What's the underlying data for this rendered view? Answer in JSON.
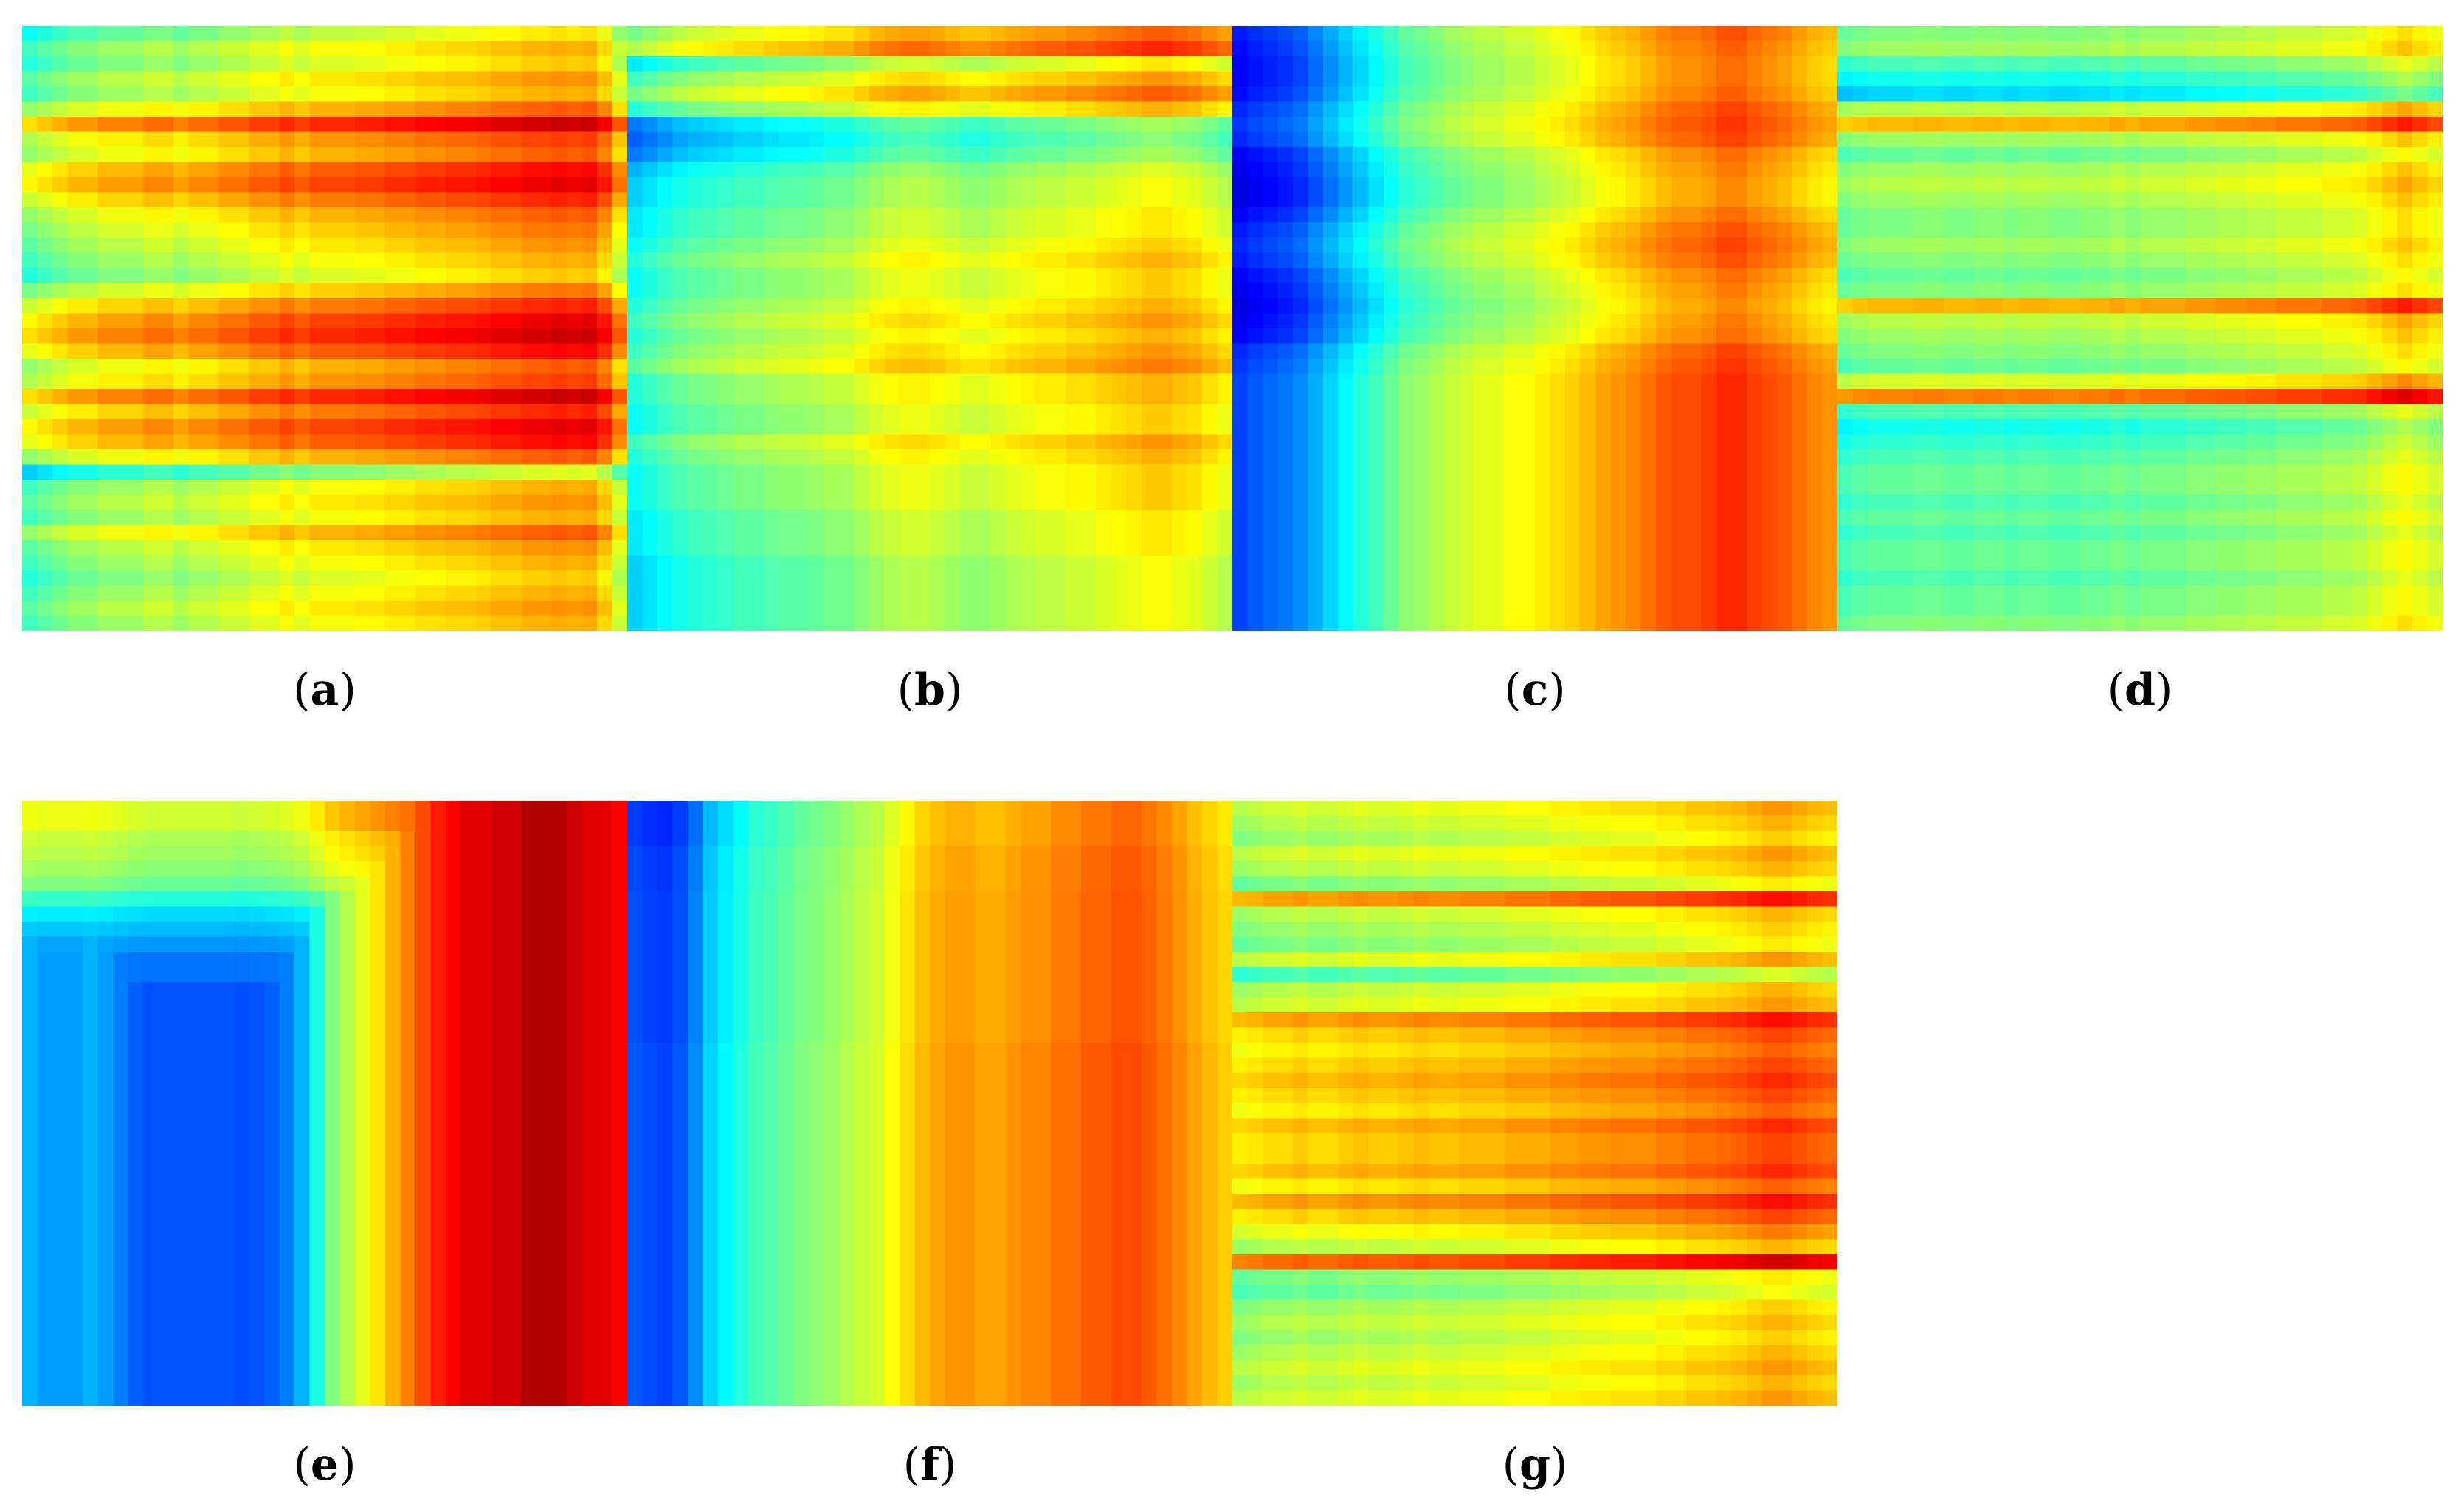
{
  "figure": {
    "colormap": "jet",
    "colormap_stops": [
      "#00008f",
      "#0000ff",
      "#0080ff",
      "#00ffff",
      "#80ff80",
      "#ffff00",
      "#ff8000",
      "#ff0000",
      "#800000"
    ]
  },
  "panels": [
    {
      "id": "a",
      "label": "a"
    },
    {
      "id": "b",
      "label": "b"
    },
    {
      "id": "c",
      "label": "c"
    },
    {
      "id": "d",
      "label": "d"
    },
    {
      "id": "e",
      "label": "e"
    },
    {
      "id": "f",
      "label": "f"
    },
    {
      "id": "g",
      "label": "g"
    }
  ],
  "chart_data": [
    {
      "type": "heatmap",
      "panel": "a",
      "grid": [
        40,
        40
      ],
      "description_pattern": "row-banded",
      "value_range": [
        0,
        1
      ],
      "row_profile": [
        0.45,
        0.55,
        0.5,
        0.6,
        0.55,
        0.7,
        0.95,
        0.75,
        0.7,
        0.85,
        0.9,
        0.8,
        0.7,
        0.65,
        0.6,
        0.55,
        0.5,
        0.65,
        0.8,
        0.9,
        0.95,
        0.85,
        0.7,
        0.75,
        0.95,
        0.8,
        0.9,
        0.85,
        0.7,
        0.35,
        0.55,
        0.6,
        0.55,
        0.7,
        0.6,
        0.55,
        0.5,
        0.55,
        0.6,
        0.55
      ],
      "col_profile": [
        0.3,
        0.35,
        0.4,
        0.45,
        0.45,
        0.5,
        0.5,
        0.5,
        0.55,
        0.55,
        0.5,
        0.55,
        0.55,
        0.6,
        0.6,
        0.65,
        0.65,
        0.7,
        0.65,
        0.7,
        0.7,
        0.7,
        0.72,
        0.72,
        0.75,
        0.75,
        0.78,
        0.78,
        0.8,
        0.8,
        0.82,
        0.85,
        0.85,
        0.88,
        0.88,
        0.9,
        0.88,
        0.9,
        0.8,
        0.6
      ]
    },
    {
      "type": "heatmap",
      "panel": "b",
      "grid": [
        40,
        40
      ],
      "description_pattern": "increasing-left-to-right",
      "value_range": [
        0,
        1
      ],
      "row_profile": [
        0.65,
        0.75,
        0.4,
        0.55,
        0.65,
        0.5,
        0.2,
        0.15,
        0.2,
        0.3,
        0.35,
        0.35,
        0.4,
        0.4,
        0.45,
        0.5,
        0.45,
        0.45,
        0.5,
        0.55,
        0.5,
        0.55,
        0.6,
        0.5,
        0.5,
        0.45,
        0.45,
        0.55,
        0.5,
        0.45,
        0.45,
        0.45,
        0.4,
        0.4,
        0.4,
        0.35,
        0.35,
        0.35,
        0.35,
        0.35
      ],
      "col_profile": [
        0.3,
        0.35,
        0.4,
        0.45,
        0.48,
        0.5,
        0.52,
        0.55,
        0.55,
        0.58,
        0.6,
        0.6,
        0.62,
        0.65,
        0.65,
        0.7,
        0.75,
        0.78,
        0.8,
        0.8,
        0.78,
        0.75,
        0.72,
        0.72,
        0.75,
        0.78,
        0.8,
        0.82,
        0.82,
        0.85,
        0.85,
        0.88,
        0.9,
        0.92,
        0.95,
        0.95,
        0.92,
        0.9,
        0.85,
        0.8
      ]
    },
    {
      "type": "heatmap",
      "panel": "c",
      "grid": [
        40,
        40
      ],
      "description_pattern": "cold-left-hot-right",
      "value_range": [
        0,
        1
      ],
      "row_profile": [
        0.4,
        0.35,
        0.3,
        0.3,
        0.35,
        0.45,
        0.5,
        0.45,
        0.3,
        0.25,
        0.2,
        0.2,
        0.3,
        0.4,
        0.45,
        0.4,
        0.3,
        0.25,
        0.2,
        0.25,
        0.3,
        0.45,
        0.5,
        0.55,
        0.55,
        0.55,
        0.55,
        0.55,
        0.55,
        0.55,
        0.55,
        0.55,
        0.55,
        0.55,
        0.55,
        0.55,
        0.55,
        0.55,
        0.55,
        0.55
      ],
      "col_profile": [
        0.05,
        0.08,
        0.1,
        0.12,
        0.15,
        0.2,
        0.25,
        0.3,
        0.35,
        0.4,
        0.45,
        0.5,
        0.52,
        0.55,
        0.58,
        0.6,
        0.62,
        0.62,
        0.65,
        0.65,
        0.68,
        0.7,
        0.72,
        0.75,
        0.78,
        0.8,
        0.82,
        0.85,
        0.88,
        0.9,
        0.9,
        0.92,
        0.95,
        0.95,
        0.92,
        0.9,
        0.88,
        0.85,
        0.82,
        0.8
      ]
    },
    {
      "type": "heatmap",
      "panel": "d",
      "grid": [
        40,
        40
      ],
      "description_pattern": "row-banded-mixed",
      "value_range": [
        0,
        1
      ],
      "row_profile": [
        0.5,
        0.55,
        0.4,
        0.3,
        0.2,
        0.6,
        0.85,
        0.55,
        0.45,
        0.55,
        0.6,
        0.55,
        0.5,
        0.5,
        0.55,
        0.5,
        0.45,
        0.5,
        0.85,
        0.6,
        0.55,
        0.5,
        0.45,
        0.65,
        0.95,
        0.4,
        0.3,
        0.35,
        0.4,
        0.45,
        0.45,
        0.4,
        0.45,
        0.4,
        0.45,
        0.45,
        0.4,
        0.45,
        0.45,
        0.5
      ],
      "col_profile": [
        0.45,
        0.48,
        0.5,
        0.5,
        0.5,
        0.52,
        0.52,
        0.5,
        0.5,
        0.52,
        0.52,
        0.5,
        0.52,
        0.52,
        0.5,
        0.5,
        0.52,
        0.52,
        0.55,
        0.52,
        0.55,
        0.55,
        0.55,
        0.58,
        0.58,
        0.6,
        0.6,
        0.62,
        0.62,
        0.65,
        0.65,
        0.65,
        0.68,
        0.68,
        0.7,
        0.75,
        0.8,
        0.85,
        0.8,
        0.75
      ]
    },
    {
      "type": "heatmap",
      "panel": "e",
      "grid": [
        40,
        40
      ],
      "description_pattern": "hot-top-right-cold-bottom-left",
      "value_range": [
        0,
        1
      ],
      "row_profile": [
        0.85,
        0.85,
        0.8,
        0.78,
        0.75,
        0.7,
        0.6,
        0.5,
        0.45,
        0.4,
        0.35,
        0.35,
        0.3,
        0.3,
        0.3,
        0.3,
        0.3,
        0.3,
        0.3,
        0.3,
        0.3,
        0.3,
        0.3,
        0.3,
        0.3,
        0.3,
        0.3,
        0.3,
        0.3,
        0.3,
        0.3,
        0.3,
        0.3,
        0.3,
        0.3,
        0.3,
        0.3,
        0.3,
        0.3,
        0.3
      ],
      "col_profile": [
        0.3,
        0.28,
        0.28,
        0.28,
        0.3,
        0.28,
        0.25,
        0.22,
        0.2,
        0.2,
        0.2,
        0.2,
        0.2,
        0.2,
        0.18,
        0.2,
        0.22,
        0.25,
        0.3,
        0.4,
        0.5,
        0.55,
        0.6,
        0.65,
        0.7,
        0.75,
        0.8,
        0.85,
        0.88,
        0.9,
        0.9,
        0.92,
        0.92,
        0.95,
        0.95,
        0.95,
        0.92,
        0.9,
        0.9,
        0.88
      ]
    },
    {
      "type": "heatmap",
      "panel": "f",
      "grid": [
        40,
        40
      ],
      "description_pattern": "cold-left-edge-hot-right",
      "value_range": [
        0,
        1
      ],
      "row_profile": [
        0.45,
        0.45,
        0.45,
        0.5,
        0.5,
        0.5,
        0.52,
        0.52,
        0.52,
        0.52,
        0.52,
        0.52,
        0.52,
        0.52,
        0.52,
        0.52,
        0.55,
        0.55,
        0.55,
        0.55,
        0.55,
        0.55,
        0.55,
        0.55,
        0.55,
        0.55,
        0.55,
        0.55,
        0.55,
        0.55,
        0.55,
        0.55,
        0.55,
        0.55,
        0.55,
        0.55,
        0.55,
        0.55,
        0.55,
        0.55
      ],
      "col_profile": [
        0.08,
        0.06,
        0.05,
        0.08,
        0.15,
        0.25,
        0.3,
        0.35,
        0.4,
        0.42,
        0.45,
        0.48,
        0.5,
        0.52,
        0.55,
        0.58,
        0.6,
        0.65,
        0.7,
        0.75,
        0.78,
        0.8,
        0.8,
        0.78,
        0.78,
        0.8,
        0.82,
        0.82,
        0.85,
        0.85,
        0.88,
        0.88,
        0.9,
        0.9,
        0.88,
        0.85,
        0.82,
        0.78,
        0.75,
        0.72
      ]
    },
    {
      "type": "heatmap",
      "panel": "g",
      "grid": [
        40,
        40
      ],
      "description_pattern": "row-banded-hot",
      "value_range": [
        0,
        1
      ],
      "row_profile": [
        0.6,
        0.55,
        0.5,
        0.6,
        0.55,
        0.45,
        0.85,
        0.55,
        0.5,
        0.45,
        0.6,
        0.35,
        0.55,
        0.6,
        0.85,
        0.75,
        0.7,
        0.75,
        0.8,
        0.75,
        0.7,
        0.8,
        0.75,
        0.75,
        0.8,
        0.7,
        0.85,
        0.75,
        0.65,
        0.55,
        0.95,
        0.45,
        0.4,
        0.5,
        0.55,
        0.5,
        0.55,
        0.6,
        0.55,
        0.6
      ],
      "col_profile": [
        0.5,
        0.52,
        0.55,
        0.55,
        0.58,
        0.55,
        0.55,
        0.58,
        0.6,
        0.58,
        0.58,
        0.6,
        0.62,
        0.6,
        0.6,
        0.62,
        0.62,
        0.62,
        0.65,
        0.65,
        0.65,
        0.68,
        0.68,
        0.7,
        0.7,
        0.72,
        0.72,
        0.72,
        0.75,
        0.75,
        0.78,
        0.78,
        0.8,
        0.82,
        0.85,
        0.88,
        0.88,
        0.85,
        0.82,
        0.8
      ]
    }
  ]
}
